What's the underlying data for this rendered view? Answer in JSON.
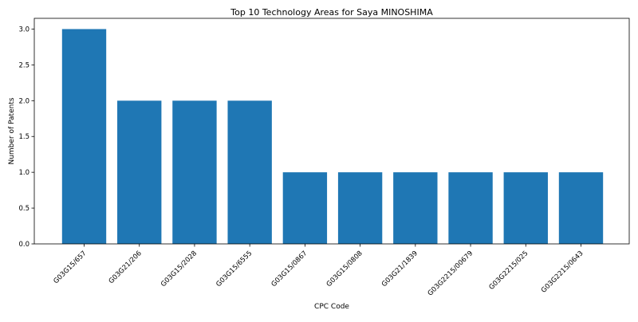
{
  "chart_data": {
    "type": "bar",
    "title": "Top 10 Technology Areas for Saya MINOSHIMA",
    "xlabel": "CPC Code",
    "ylabel": "Number of Patents",
    "categories": [
      "G03G15/657",
      "G03G21/206",
      "G03G15/2028",
      "G03G15/6555",
      "G03G15/0867",
      "G03G15/0808",
      "G03G21/1839",
      "G03G2215/00679",
      "G03G2215/025",
      "G03G2215/0643"
    ],
    "values": [
      3,
      2,
      2,
      2,
      1,
      1,
      1,
      1,
      1,
      1
    ],
    "ylim": [
      0,
      3.15
    ],
    "yticks": [
      "0.0",
      "0.5",
      "1.0",
      "1.5",
      "2.0",
      "2.5",
      "3.0"
    ],
    "grid": false,
    "bar_color": "#1f77b4"
  }
}
